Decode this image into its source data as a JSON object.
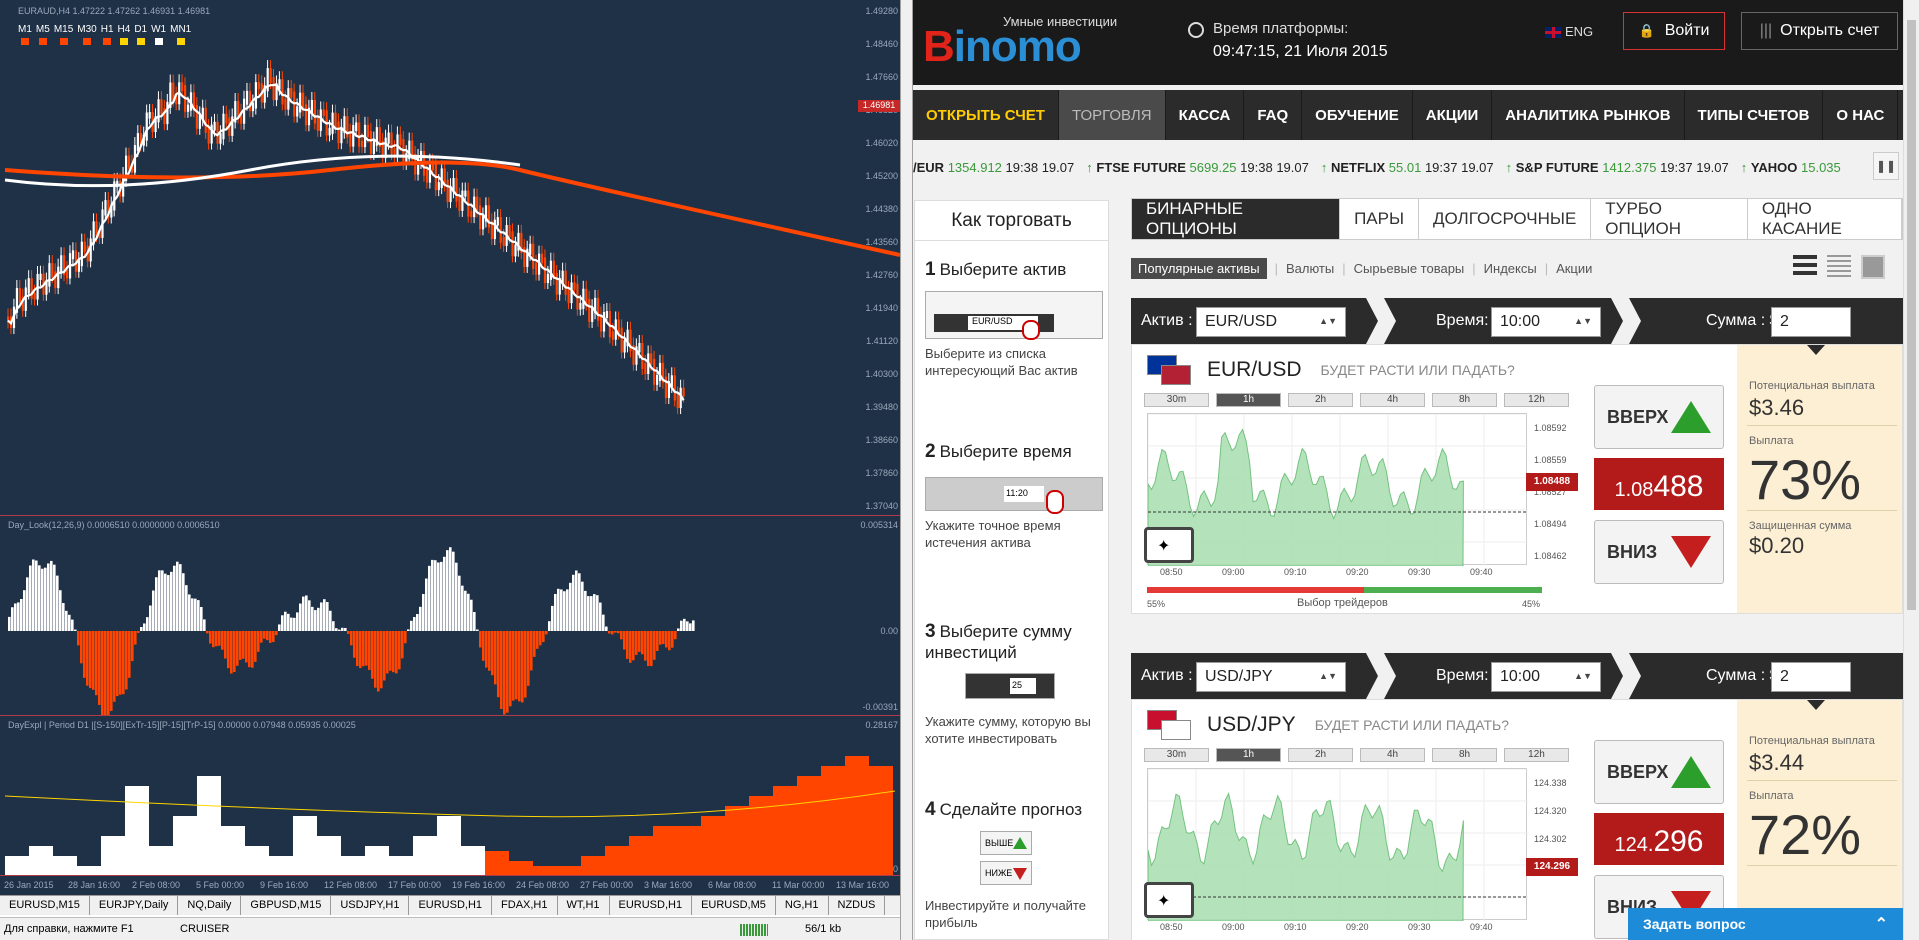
{
  "mt": {
    "pane1_label": "EURAUD,H4 1.47222 1.47262 1.46931 1.46981",
    "pane2_label": "Day_Look(12,26,9) 0.0006510 0.0000000 0.0006510",
    "pane3_label": "DayExpl | Period D1 |[S-150][ExTr-15][P-15][TrP-15] 0.00000 0.07948 0.05935 0.00025",
    "timeframes": [
      "M1",
      "M5",
      "M15",
      "M30",
      "H1",
      "H4",
      "D1",
      "W1",
      "MN1"
    ],
    "tf_colors": [
      "#ff4500",
      "#ff4500",
      "#ff4500",
      "#ff4500",
      "#ff4500",
      "#ffd400",
      "#ffd400",
      "#ffffff",
      "#ffd400"
    ],
    "price_axis": [
      "1.49280",
      "1.48460",
      "1.47660",
      "1.46820",
      "1.46020",
      "1.45200",
      "1.44380",
      "1.43560",
      "1.42760",
      "1.41940",
      "1.41120",
      "1.40300",
      "1.39480",
      "1.38660",
      "1.37860",
      "1.37040"
    ],
    "current_price": "1.46981",
    "ind1_axis": [
      "0.005314",
      "0.00",
      "-0.00391"
    ],
    "ind2_axis": [
      "0.28167",
      "0"
    ],
    "time_axis": [
      "26 Jan 2015",
      "28 Jan 16:00",
      "2 Feb 08:00",
      "5 Feb 00:00",
      "9 Feb 16:00",
      "12 Feb 08:00",
      "17 Feb 00:00",
      "19 Feb 16:00",
      "24 Feb 08:00",
      "27 Feb 00:00",
      "3 Mar 16:00",
      "6 Mar 08:00",
      "11 Mar 00:00",
      "13 Mar 16:00"
    ],
    "symbol_tabs": [
      "EURUSD,M15",
      "EURJPY,Daily",
      "NQ,Daily",
      "GBPUSD,M15",
      "USDJPY,H1",
      "EURUSD,H1",
      "FDAX,H1",
      "WT,H1",
      "EURUSD,H1",
      "EURUSD,M5",
      "NG,H1",
      "NZDUS"
    ],
    "status_help": "Для справки, нажмите F1",
    "status_profile": "CRUISER",
    "status_traffic": "56/1 kb"
  },
  "site": {
    "logo_text": "Binomo",
    "tagline": "Умные инвестиции",
    "time_label": "Время платформы:",
    "time_value": "09:47:15, 21 Июля 2015",
    "lang": "ENG",
    "login": "Войти",
    "open_account": "Открыть счет",
    "nav": [
      "ОТКРЫТЬ СЧЕТ",
      "ТОРГОВЛЯ",
      "КАССА",
      "FAQ",
      "ОБУЧЕНИЕ",
      "АКЦИИ",
      "АНАЛИТИКА РЫНКОВ",
      "ТИПЫ СЧЕТОВ",
      "О НАС"
    ],
    "ticker": [
      {
        "name": "/EUR",
        "price": "1354.912",
        "time": "19:38 19.07"
      },
      {
        "name": "FTSE FUTURE",
        "price": "5699.25",
        "time": "19:38 19.07"
      },
      {
        "name": "NETFLIX",
        "price": "55.01",
        "time": "19:37 19.07"
      },
      {
        "name": "S&P FUTURE",
        "price": "1412.375",
        "time": "19:37 19.07"
      },
      {
        "name": "YAHOO",
        "price": "15.035",
        "time": ""
      }
    ],
    "howto": {
      "title": "Как торговать",
      "steps": [
        {
          "n": "1",
          "t": "Выберите актив",
          "d": "Выберите из списка интересующий Вас актив"
        },
        {
          "n": "2",
          "t": "Выберите время",
          "d": "Укажите точное время истечения актива"
        },
        {
          "n": "3",
          "t": "Выберите сумму инвестиций",
          "d": "Укажите сумму, которую вы хотите инвестировать"
        },
        {
          "n": "4",
          "t": "Сделайте прогноз",
          "d": "Инвестируйте и получайте прибыль"
        }
      ],
      "mini_time": "11:20",
      "mini_sum": "25",
      "mini_up": "ВЫШЕ",
      "mini_down": "НИЖЕ"
    },
    "tabs": [
      "БИНАРНЫЕ ОПЦИОНЫ",
      "ПАРЫ",
      "ДОЛГОСРОЧНЫЕ",
      "ТУРБО ОПЦИОН",
      "ОДНО КАСАНИЕ"
    ],
    "subtabs": [
      "Популярные активы",
      "Валюты",
      "Сырьевые товары",
      "Индексы",
      "Акции"
    ],
    "labels": {
      "asset": "Актив :",
      "time": "Время:",
      "sum": "Сумма : $",
      "question": "БУДЕТ РАСТИ ИЛИ ПАДАТЬ?",
      "up": "ВВЕРХ",
      "down": "ВНИЗ",
      "payout_pot": "Потенциальная выплата",
      "payout": "Выплата",
      "protected": "Защищенная сумма",
      "traders": "Выбор трейдеров"
    },
    "timeframes": [
      "30m",
      "1h",
      "2h",
      "4h",
      "8h",
      "12h"
    ],
    "chat": "Задать вопрос",
    "cards": [
      {
        "asset": "EUR/USD",
        "time": "10:00",
        "sum": "2",
        "price_small": "1.08",
        "price_big": "488",
        "price_tag": "1.08488",
        "potential": "$3.46",
        "payout": "73%",
        "protected": "$0.20",
        "left_pct": "55%",
        "right_pct": "45%",
        "buy_share": 0.55,
        "yaxis": [
          "1.08592",
          "1.08559",
          "1.08527",
          "1.08494",
          "1.08462"
        ],
        "xaxis": [
          "08:50",
          "09:00",
          "09:10",
          "09:20",
          "09:30",
          "09:40"
        ]
      },
      {
        "asset": "USD/JPY",
        "time": "10:00",
        "sum": "2",
        "price_small": "124.",
        "price_big": "296",
        "price_tag": "124.296",
        "potential": "$3.44",
        "payout": "72%",
        "protected": "",
        "left_pct": "",
        "right_pct": "",
        "buy_share": 0,
        "yaxis": [
          "124.338",
          "124.320",
          "124.302",
          "124.287"
        ],
        "xaxis": [
          "08:50",
          "09:00",
          "09:10",
          "09:20",
          "09:30",
          "09:40"
        ]
      }
    ]
  },
  "colors": {
    "mt_bg": "#1f3147",
    "bearish": "#ff4500",
    "bullish": "#ffffff",
    "accent_red": "#b31b1b",
    "green": "#2c9e2c",
    "nav_bg": "#2b2b2b"
  }
}
